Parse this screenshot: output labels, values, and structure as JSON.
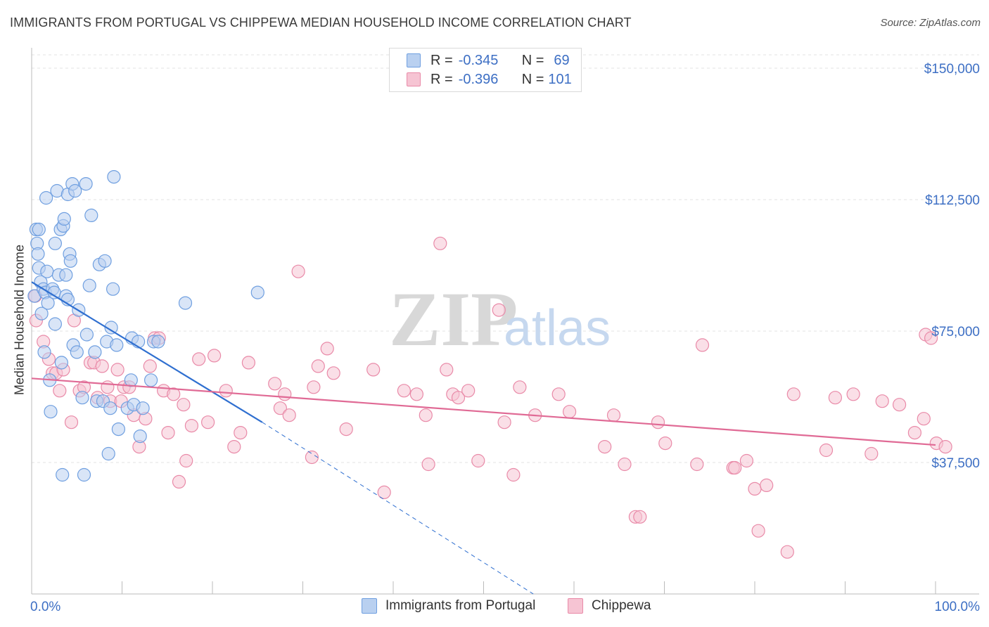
{
  "header": {
    "title": "IMMIGRANTS FROM PORTUGAL VS CHIPPEWA MEDIAN HOUSEHOLD INCOME CORRELATION CHART",
    "source": "Source: ZipAtlas.com"
  },
  "legend_top": {
    "rows": [
      {
        "r_label": "R =",
        "r_value": "-0.345",
        "n_label": "N =",
        "n_value": "69"
      },
      {
        "r_label": "R =",
        "r_value": "-0.396",
        "n_label": "N =",
        "n_value": "101"
      }
    ]
  },
  "legend_bottom": {
    "items": [
      "Immigrants from Portugal",
      "Chippewa"
    ]
  },
  "watermark": {
    "zip": "ZIP",
    "atlas": "atlas"
  },
  "colors": {
    "blue_fill": "#b9d0f0",
    "blue_stroke": "#6f9fe0",
    "blue_line": "#2f6fd0",
    "pink_fill": "#f6c4d3",
    "pink_stroke": "#e98aa8",
    "pink_line": "#e06a95",
    "tick_text": "#3d6fc4",
    "grid": "#dddddd"
  },
  "chart_data": {
    "type": "scatter",
    "title": "IMMIGRANTS FROM PORTUGAL VS CHIPPEWA MEDIAN HOUSEHOLD INCOME CORRELATION CHART",
    "xlabel": "",
    "ylabel": "Median Household Income",
    "xlim": [
      0,
      100
    ],
    "ylim": [
      0,
      157000
    ],
    "x_tick_labels": [
      "0.0%",
      "100.0%"
    ],
    "y_ticks": [
      37500,
      75000,
      112500,
      150000
    ],
    "y_tick_labels": [
      "$37,500",
      "$75,000",
      "$112,500",
      "$150,000"
    ],
    "grid": true,
    "legend_position": "top-center",
    "series": [
      {
        "name": "Immigrants from Portugal",
        "color": "#6f9fe0",
        "trend": {
          "x": [
            0,
            25.5
          ],
          "y": [
            89000,
            49000
          ],
          "dashed_to": {
            "x": 55.5,
            "y": 0
          }
        },
        "points": [
          [
            0.3,
            85000
          ],
          [
            0.5,
            104000
          ],
          [
            0.6,
            100000
          ],
          [
            0.7,
            97000
          ],
          [
            0.8,
            104000
          ],
          [
            0.8,
            93000
          ],
          [
            1,
            89000
          ],
          [
            1.1,
            80000
          ],
          [
            1.3,
            87000
          ],
          [
            1.4,
            69000
          ],
          [
            1.5,
            86000
          ],
          [
            1.6,
            113000
          ],
          [
            1.7,
            92000
          ],
          [
            1.8,
            83000
          ],
          [
            2,
            61000
          ],
          [
            2.1,
            52000
          ],
          [
            2.3,
            87000
          ],
          [
            2.5,
            86000
          ],
          [
            2.6,
            100000
          ],
          [
            2.6,
            77000
          ],
          [
            2.8,
            115000
          ],
          [
            3,
            91000
          ],
          [
            3.2,
            104000
          ],
          [
            3.3,
            66000
          ],
          [
            3.4,
            34000
          ],
          [
            3.5,
            105000
          ],
          [
            3.6,
            107000
          ],
          [
            3.8,
            85000
          ],
          [
            3.8,
            91000
          ],
          [
            4,
            84000
          ],
          [
            4,
            114000
          ],
          [
            4.2,
            97000
          ],
          [
            4.3,
            95000
          ],
          [
            4.5,
            117000
          ],
          [
            4.6,
            71000
          ],
          [
            4.8,
            115000
          ],
          [
            5,
            69000
          ],
          [
            5.2,
            81000
          ],
          [
            5.6,
            56000
          ],
          [
            5.8,
            34000
          ],
          [
            6,
            117000
          ],
          [
            6.1,
            74000
          ],
          [
            6.4,
            88000
          ],
          [
            6.6,
            108000
          ],
          [
            7,
            69000
          ],
          [
            7.2,
            55000
          ],
          [
            7.5,
            94000
          ],
          [
            7.9,
            55000
          ],
          [
            8.1,
            95000
          ],
          [
            8.3,
            72000
          ],
          [
            8.5,
            40000
          ],
          [
            8.7,
            53000
          ],
          [
            8.8,
            76000
          ],
          [
            9,
            87000
          ],
          [
            9.1,
            119000
          ],
          [
            9.4,
            71000
          ],
          [
            9.6,
            47000
          ],
          [
            10.6,
            53000
          ],
          [
            11,
            61000
          ],
          [
            11.1,
            73000
          ],
          [
            11.3,
            54000
          ],
          [
            11.8,
            72000
          ],
          [
            12,
            45000
          ],
          [
            12.3,
            53000
          ],
          [
            13.2,
            61000
          ],
          [
            13.5,
            72000
          ],
          [
            17,
            83000
          ],
          [
            25,
            86000
          ],
          [
            14,
            72000
          ]
        ]
      },
      {
        "name": "Chippewa",
        "color": "#e98aa8",
        "trend": {
          "x": [
            0,
            100
          ],
          "y": [
            61500,
            42500
          ]
        },
        "points": [
          [
            0.5,
            78000
          ],
          [
            1.3,
            72000
          ],
          [
            1.9,
            67000
          ],
          [
            2.3,
            63000
          ],
          [
            2.7,
            63000
          ],
          [
            3.1,
            58000
          ],
          [
            3.5,
            64000
          ],
          [
            4.4,
            49000
          ],
          [
            4.7,
            78000
          ],
          [
            5.3,
            58000
          ],
          [
            5.8,
            59000
          ],
          [
            6.5,
            66000
          ],
          [
            6.9,
            66000
          ],
          [
            7.3,
            56000
          ],
          [
            7.8,
            65000
          ],
          [
            8.4,
            59000
          ],
          [
            8.7,
            55000
          ],
          [
            9.5,
            64000
          ],
          [
            9.9,
            55000
          ],
          [
            10.2,
            59000
          ],
          [
            10.8,
            59000
          ],
          [
            11.3,
            51000
          ],
          [
            11.9,
            42000
          ],
          [
            12.6,
            50000
          ],
          [
            13.1,
            65000
          ],
          [
            13.6,
            73000
          ],
          [
            14.1,
            73000
          ],
          [
            14.6,
            58000
          ],
          [
            15.1,
            46000
          ],
          [
            15.7,
            57000
          ],
          [
            16.3,
            32000
          ],
          [
            16.8,
            54000
          ],
          [
            17.1,
            38000
          ],
          [
            17.7,
            48000
          ],
          [
            18.5,
            67000
          ],
          [
            19.5,
            49000
          ],
          [
            20.2,
            68000
          ],
          [
            21.5,
            58000
          ],
          [
            22.4,
            42000
          ],
          [
            23.1,
            46000
          ],
          [
            24,
            66000
          ],
          [
            26.9,
            60000
          ],
          [
            27.5,
            53000
          ],
          [
            28,
            57000
          ],
          [
            28.5,
            51000
          ],
          [
            29.5,
            92000
          ],
          [
            31,
            39000
          ],
          [
            31.2,
            59000
          ],
          [
            31.7,
            65000
          ],
          [
            32.7,
            70000
          ],
          [
            33.4,
            63000
          ],
          [
            34.8,
            47000
          ],
          [
            37.8,
            64000
          ],
          [
            39,
            29000
          ],
          [
            41.2,
            58000
          ],
          [
            42.6,
            57000
          ],
          [
            43.6,
            51000
          ],
          [
            43.9,
            37000
          ],
          [
            45.2,
            100000
          ],
          [
            45.9,
            64000
          ],
          [
            46.6,
            57000
          ],
          [
            47.2,
            56000
          ],
          [
            48.3,
            58000
          ],
          [
            49.4,
            38000
          ],
          [
            51.7,
            81000
          ],
          [
            52.3,
            49000
          ],
          [
            53.3,
            34000
          ],
          [
            54,
            59000
          ],
          [
            55.7,
            51000
          ],
          [
            58.3,
            57000
          ],
          [
            59.5,
            52000
          ],
          [
            63.4,
            42000
          ],
          [
            64.4,
            51000
          ],
          [
            65.6,
            37000
          ],
          [
            66.8,
            22000
          ],
          [
            67.3,
            22000
          ],
          [
            69.3,
            49000
          ],
          [
            70.1,
            43000
          ],
          [
            73.6,
            37000
          ],
          [
            74.2,
            71000
          ],
          [
            77.6,
            36000
          ],
          [
            77.8,
            36000
          ],
          [
            79.1,
            38000
          ],
          [
            80,
            30000
          ],
          [
            80.4,
            18000
          ],
          [
            81.3,
            31000
          ],
          [
            83.6,
            12000
          ],
          [
            84.3,
            57000
          ],
          [
            87.9,
            41000
          ],
          [
            88.9,
            56000
          ],
          [
            90.9,
            57000
          ],
          [
            92.9,
            40000
          ],
          [
            94.1,
            55000
          ],
          [
            96,
            54000
          ],
          [
            97.7,
            46000
          ],
          [
            98.7,
            50000
          ],
          [
            98.9,
            74000
          ],
          [
            99.5,
            73000
          ],
          [
            100.1,
            43000
          ],
          [
            101.1,
            42000
          ],
          [
            0.4,
            85000
          ]
        ]
      }
    ]
  }
}
